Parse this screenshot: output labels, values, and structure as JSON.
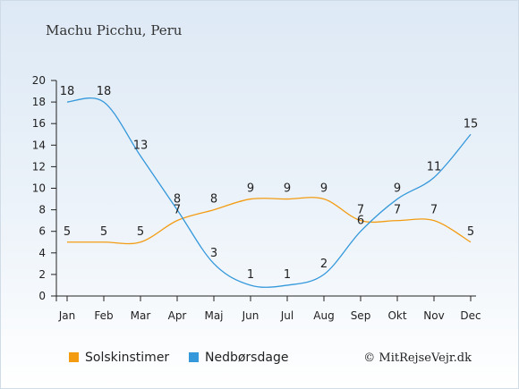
{
  "chart_data": {
    "type": "line",
    "title": "Machu Picchu, Peru",
    "categories": [
      "Jan",
      "Feb",
      "Mar",
      "Apr",
      "Maj",
      "Jun",
      "Jul",
      "Aug",
      "Sep",
      "Okt",
      "Nov",
      "Dec"
    ],
    "ylim": [
      0,
      20
    ],
    "yticks": [
      0,
      2,
      4,
      6,
      8,
      10,
      12,
      14,
      16,
      18,
      20
    ],
    "grid": false,
    "legend_position": "bottom",
    "series": [
      {
        "name": "Solskinstimer",
        "color": "#f39c12",
        "values": [
          5,
          5,
          5,
          7,
          8,
          9,
          9,
          9,
          7,
          7,
          7,
          5
        ]
      },
      {
        "name": "Nedbørsdage",
        "color": "#3498db",
        "values": [
          18,
          18,
          13,
          8,
          3,
          1,
          1,
          2,
          6,
          9,
          11,
          15
        ]
      }
    ],
    "credit": "© MitRejseVejr.dk"
  }
}
